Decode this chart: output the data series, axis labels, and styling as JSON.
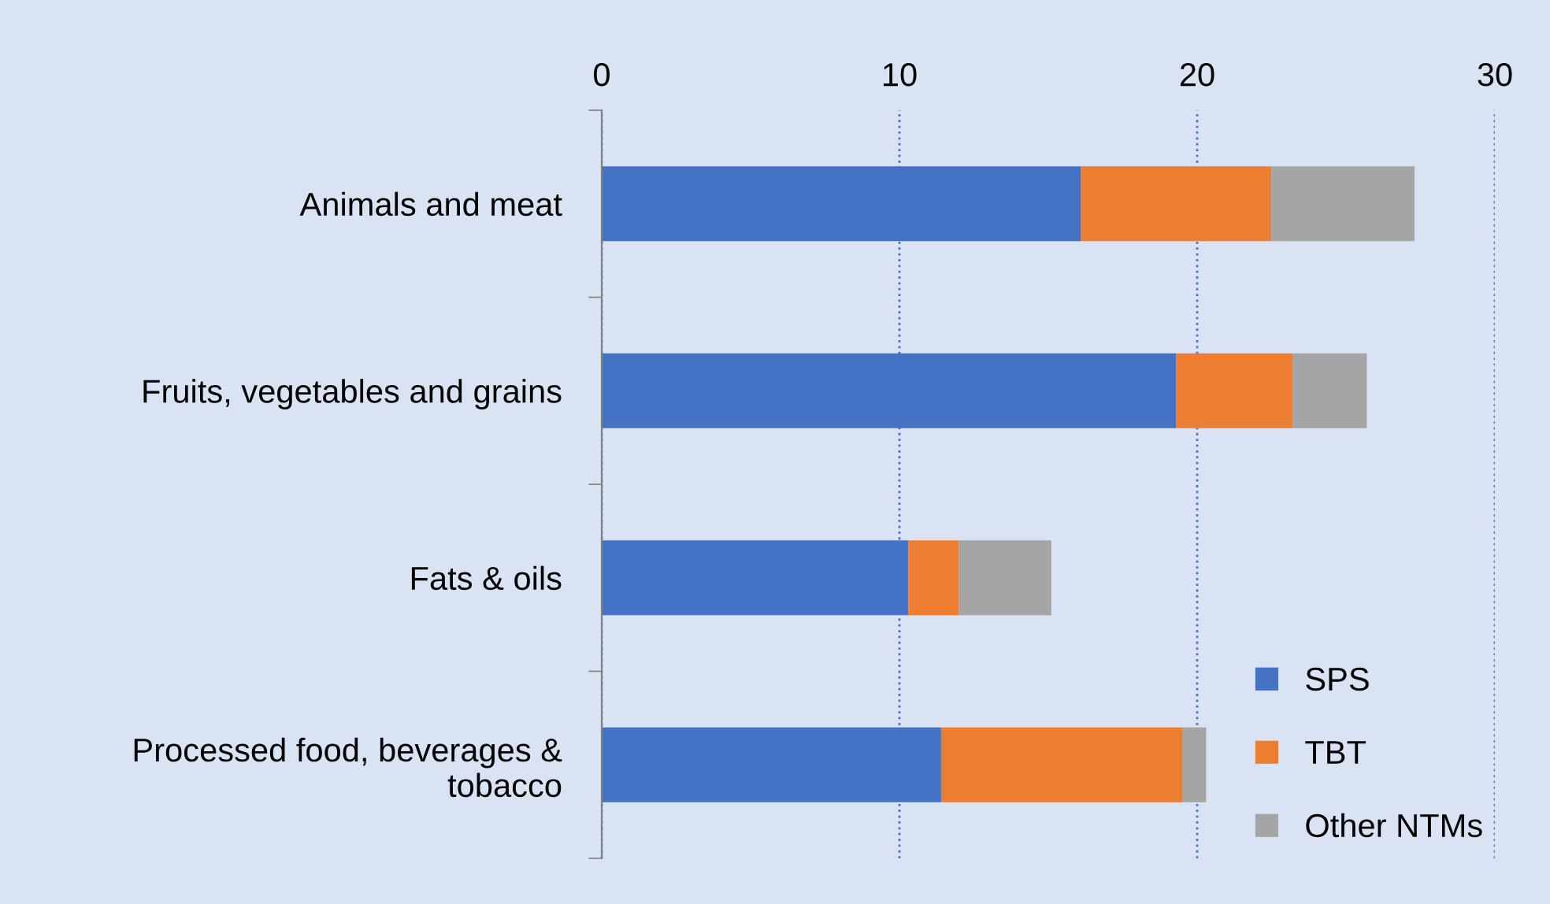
{
  "chart_data": {
    "type": "bar",
    "orientation": "horizontal",
    "stacked": true,
    "categories": [
      "Animals and meat",
      "Fruits, vegetables and grains",
      "Fats & oils",
      "Processed food, beverages &\ntobacco"
    ],
    "series": [
      {
        "name": "SPS",
        "color": "#4472c4",
        "values": [
          16.1,
          19.3,
          10.3,
          11.4
        ]
      },
      {
        "name": "TBT",
        "color": "#ed7d31",
        "values": [
          6.4,
          3.9,
          1.7,
          8.1
        ]
      },
      {
        "name": "Other NTMs",
        "color": "#a5a5a5",
        "values": [
          4.8,
          2.5,
          3.1,
          0.8
        ]
      }
    ],
    "xlim": [
      0,
      30
    ],
    "xticks": [
      0,
      10,
      20,
      30
    ],
    "grid": "x",
    "legend": "bottom right"
  }
}
